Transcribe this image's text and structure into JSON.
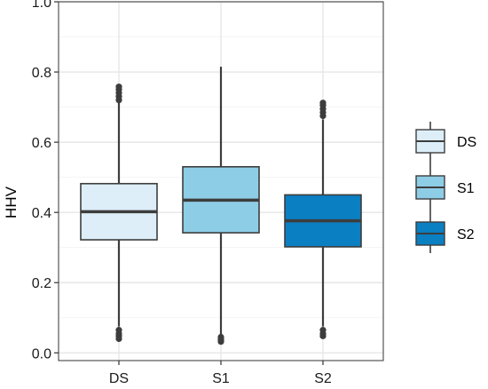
{
  "chart_data": {
    "type": "box",
    "title": "",
    "xlabel": "",
    "ylabel": "HHV",
    "ylim": [
      0.0,
      1.0
    ],
    "yticks": [
      "0.0",
      "0.2",
      "0.4",
      "0.6",
      "0.8",
      "1.0"
    ],
    "ytick_values": [
      0.0,
      0.2,
      0.4,
      0.6,
      0.8,
      1.0
    ],
    "categories": [
      "DS",
      "S1",
      "S2"
    ],
    "grid": true,
    "legend_position": "right",
    "series": [
      {
        "name": "DS",
        "color": "#ddeef9",
        "whisker_low": 0.075,
        "q1": 0.322,
        "median": 0.402,
        "q3": 0.482,
        "whisker_high": 0.715,
        "outliers_low": [
          0.065,
          0.055,
          0.048,
          0.04
        ],
        "outliers_high": [
          0.72,
          0.73,
          0.74,
          0.75,
          0.758
        ]
      },
      {
        "name": "S1",
        "color": "#8ecde6",
        "whisker_low": 0.048,
        "q1": 0.342,
        "median": 0.435,
        "q3": 0.53,
        "whisker_high": 0.815,
        "outliers_low": [
          0.045,
          0.038,
          0.032
        ],
        "outliers_high": []
      },
      {
        "name": "S2",
        "color": "#0a7fc2",
        "whisker_low": 0.075,
        "q1": 0.302,
        "median": 0.376,
        "q3": 0.45,
        "whisker_high": 0.665,
        "outliers_low": [
          0.065,
          0.055,
          0.048
        ],
        "outliers_high": [
          0.675,
          0.685,
          0.695,
          0.705,
          0.712
        ]
      }
    ],
    "legend": {
      "entries": [
        "DS",
        "S1",
        "S2"
      ]
    }
  }
}
